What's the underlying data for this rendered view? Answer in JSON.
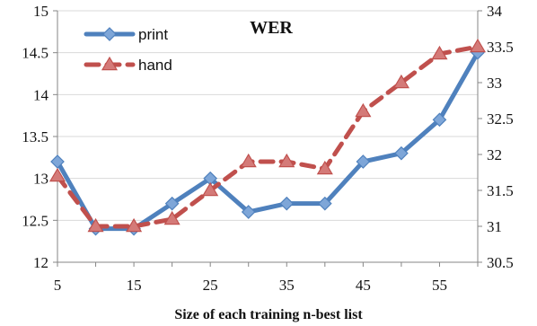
{
  "chart_data": {
    "type": "line",
    "title": "WER",
    "xlabel": "Size of each training n-best list",
    "x": [
      5,
      10,
      15,
      20,
      25,
      30,
      35,
      40,
      45,
      50,
      55,
      60
    ],
    "x_ticks": [
      5,
      15,
      25,
      35,
      45,
      55
    ],
    "y_left": {
      "lim": [
        12,
        15
      ],
      "ticks": [
        "12",
        "12.5",
        "13",
        "13.5",
        "14",
        "14.5",
        "15"
      ]
    },
    "y_right": {
      "lim": [
        30.5,
        34
      ],
      "ticks": [
        "30.5",
        "31",
        "31.5",
        "32",
        "32.5",
        "33",
        "33.5",
        "34"
      ]
    },
    "grid": "horizontal",
    "legend_position": "top-left",
    "series": [
      {
        "name": "print",
        "axis": "left",
        "color": "#4f81bd",
        "marker": "diamond",
        "line_style": "solid",
        "values": [
          13.2,
          12.4,
          12.4,
          12.7,
          13.0,
          12.6,
          12.7,
          12.7,
          13.2,
          13.3,
          13.7,
          14.5
        ]
      },
      {
        "name": "hand",
        "axis": "right",
        "color": "#c0504d",
        "marker": "triangle",
        "line_style": "dashed",
        "values": [
          31.7,
          31.0,
          31.0,
          31.1,
          31.5,
          31.9,
          31.9,
          31.8,
          32.6,
          33.0,
          33.4,
          33.5
        ]
      }
    ]
  }
}
